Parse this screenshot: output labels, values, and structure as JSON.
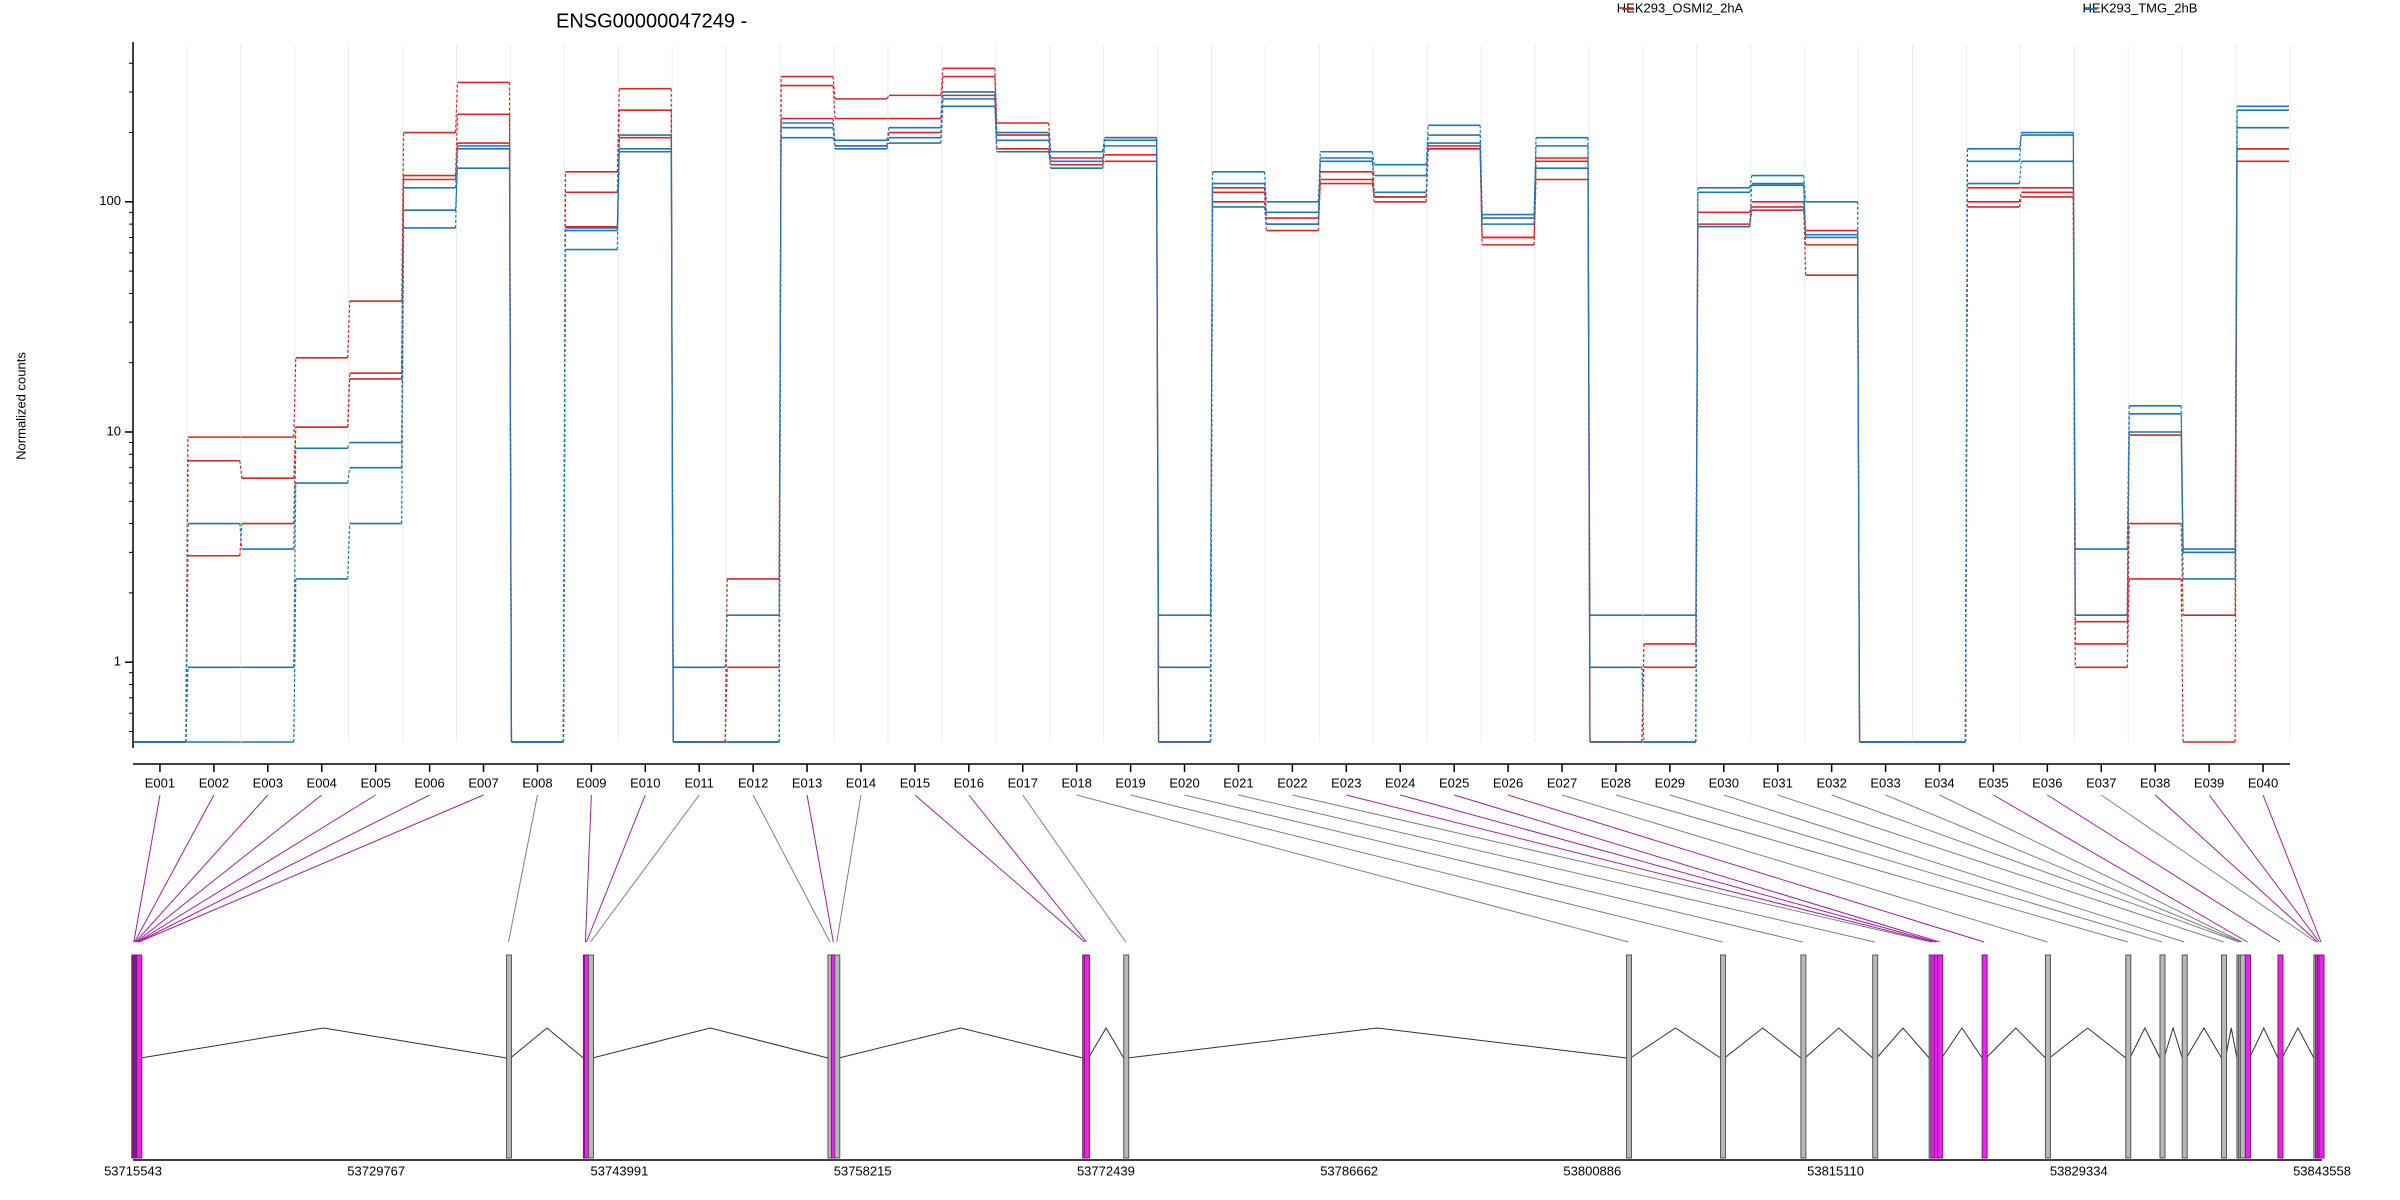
{
  "chart_data": {
    "type": "line",
    "title": "ENSG00000047249 -",
    "ylabel": "Normalized counts",
    "xlabel": "",
    "y_scale": "log",
    "ylim": [
      0.45,
      480
    ],
    "yticks": [
      1,
      10,
      100
    ],
    "ytick_labels": [
      "1",
      "10",
      "100"
    ],
    "grid": "vertical light lines at exon boundaries",
    "legend_placement": "top",
    "legend": [
      {
        "label": "HEK293_OSMI2_2hA",
        "color": "#d62728"
      },
      {
        "label": "HEK293_TMG_2hB",
        "color": "#1f77b4"
      }
    ],
    "categories": [
      "E001",
      "E002",
      "E003",
      "E004",
      "E005",
      "E006",
      "E007",
      "E008",
      "E009",
      "E010",
      "E011",
      "E012",
      "E013",
      "E014",
      "E015",
      "E016",
      "E017",
      "E018",
      "E019",
      "E020",
      "E021",
      "E022",
      "E023",
      "E024",
      "E025",
      "E026",
      "E027",
      "E028",
      "E029",
      "E030",
      "E031",
      "E032",
      "E033",
      "E034",
      "E035",
      "E036",
      "E037",
      "E038",
      "E039",
      "E040"
    ],
    "series": [
      {
        "color": "#d62728",
        "values": [
          0.45,
          9.5,
          9.5,
          21,
          37,
          200,
          330,
          0.45,
          135,
          310,
          0.45,
          0.45,
          350,
          280,
          290,
          380,
          220,
          165,
          190,
          0.45,
          115,
          85,
          135,
          105,
          175,
          70,
          155,
          0.45,
          0.45,
          90,
          100,
          48,
          0.45,
          0.45,
          100,
          110,
          0.95,
          2.3,
          0.45,
          170
        ]
      },
      {
        "color": "#d62728",
        "values": [
          0.45,
          7.5,
          6.3,
          10.5,
          18,
          130,
          240,
          0.45,
          110,
          250,
          0.45,
          0.95,
          320,
          230,
          230,
          350,
          195,
          155,
          160,
          0.45,
          110,
          80,
          125,
          100,
          170,
          70,
          150,
          0.45,
          0.95,
          80,
          95,
          65,
          0.45,
          0.45,
          95,
          105,
          1.2,
          4,
          1.6,
          150
        ]
      },
      {
        "color": "#d62728",
        "values": [
          0.45,
          2.9,
          4,
          10.5,
          17,
          125,
          180,
          0.45,
          78,
          190,
          0.45,
          2.3,
          230,
          175,
          200,
          290,
          170,
          145,
          150,
          0.45,
          100,
          75,
          120,
          105,
          170,
          65,
          125,
          0.45,
          1.2,
          78,
          92,
          75,
          0.45,
          0.45,
          115,
          115,
          1.5,
          9.7,
          3,
          170
        ]
      },
      {
        "color": "#1f77b4",
        "values": [
          0.45,
          4,
          3.1,
          8.5,
          9,
          115,
          170,
          0.45,
          77,
          195,
          0.45,
          0.45,
          220,
          185,
          210,
          300,
          200,
          165,
          190,
          1.6,
          135,
          100,
          165,
          145,
          215,
          88,
          190,
          1.6,
          1.6,
          115,
          130,
          100,
          0.45,
          0.45,
          170,
          200,
          3.1,
          13,
          3,
          260
        ]
      },
      {
        "color": "#1f77b4",
        "values": [
          0.45,
          0.95,
          0.95,
          6,
          7,
          92,
          140,
          0.45,
          62,
          170,
          0.95,
          1.6,
          190,
          175,
          190,
          280,
          185,
          150,
          185,
          0.95,
          120,
          90,
          150,
          130,
          195,
          85,
          175,
          0.95,
          0.45,
          110,
          120,
          70,
          0.45,
          0.45,
          150,
          195,
          1.6,
          12,
          3.1,
          210
        ]
      },
      {
        "color": "#1f77b4",
        "values": [
          0.45,
          0.45,
          0.45,
          2.3,
          4,
          77,
          175,
          0.45,
          75,
          165,
          0.45,
          0.45,
          210,
          170,
          180,
          260,
          165,
          140,
          175,
          0.45,
          95,
          80,
          155,
          110,
          180,
          80,
          140,
          0.45,
          0.45,
          78,
          118,
          72,
          0.45,
          0.45,
          120,
          150,
          1.6,
          10,
          2.3,
          250
        ]
      }
    ],
    "gene_model": {
      "coordinate_ticks": [
        "53715543",
        "53729767",
        "53743991",
        "53758215",
        "53772439",
        "53786662",
        "53800886",
        "53815110",
        "53829334",
        "53843558"
      ],
      "coord_start": 53715543,
      "coord_end": 53843558,
      "exon_coords": [
        53715590,
        53715640,
        53715690,
        53715740,
        53715790,
        53715840,
        53715880,
        53737500,
        53742000,
        53742060,
        53742300,
        53756300,
        53756500,
        53756700,
        53771200,
        53771300,
        53773600,
        53803000,
        53808500,
        53813200,
        53817400,
        53820700,
        53820800,
        53821000,
        53821200,
        53823800,
        53827500,
        53832200,
        53834200,
        53835500,
        53837800,
        53838700,
        53838800,
        53838900,
        53839200,
        53841100,
        53843200,
        53843300,
        53843400,
        53843500
      ],
      "highlighted_exons": [
        "E001",
        "E002",
        "E003",
        "E004",
        "E005",
        "E006",
        "E007",
        "E009",
        "E010",
        "E013",
        "E015",
        "E016",
        "E023",
        "E024",
        "E025",
        "E026",
        "E035",
        "E036",
        "E038",
        "E039",
        "E040"
      ],
      "colors": {
        "highlight": "#a020a0",
        "normal": "#808080",
        "exon_fill_highlight": "#ee22ee",
        "exon_fill_normal": "#b8b8b8"
      }
    }
  }
}
